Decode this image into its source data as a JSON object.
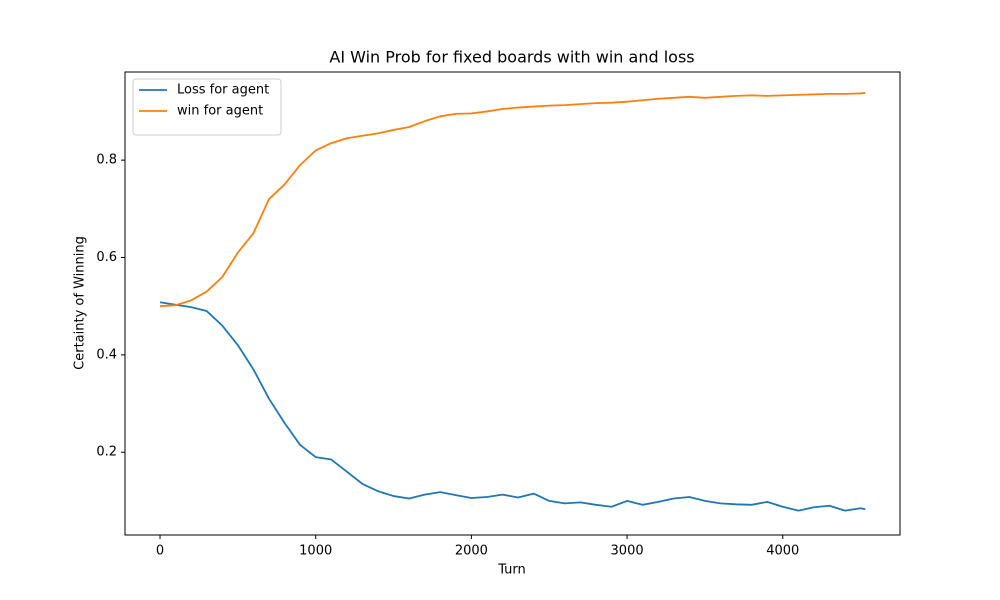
{
  "chart_data": {
    "type": "line",
    "title": "AI Win Prob for fixed boards with win and loss",
    "x_label": "Turn",
    "y_label": "Certainty of Winning",
    "x": [
      0,
      100,
      200,
      300,
      400,
      500,
      600,
      700,
      800,
      900,
      1000,
      1100,
      1200,
      1300,
      1400,
      1500,
      1600,
      1700,
      1800,
      1900,
      2000,
      2100,
      2200,
      2300,
      2400,
      2500,
      2600,
      2700,
      2800,
      2900,
      3000,
      3100,
      3200,
      3300,
      3400,
      3500,
      3600,
      3700,
      3800,
      3900,
      4000,
      4100,
      4200,
      4300,
      4400,
      4500,
      4530
    ],
    "series": [
      {
        "name": "Loss for agent",
        "color": "#1f77b4",
        "values": [
          0.508,
          0.503,
          0.498,
          0.49,
          0.46,
          0.42,
          0.37,
          0.31,
          0.26,
          0.215,
          0.19,
          0.185,
          0.16,
          0.135,
          0.12,
          0.11,
          0.105,
          0.113,
          0.118,
          0.112,
          0.106,
          0.108,
          0.113,
          0.107,
          0.115,
          0.1,
          0.095,
          0.097,
          0.092,
          0.088,
          0.1,
          0.092,
          0.098,
          0.105,
          0.108,
          0.1,
          0.095,
          0.093,
          0.092,
          0.098,
          0.088,
          0.08,
          0.087,
          0.09,
          0.08,
          0.085,
          0.083
        ]
      },
      {
        "name": "win for agent",
        "color": "#ff7f0e",
        "values": [
          0.5,
          0.502,
          0.512,
          0.53,
          0.56,
          0.61,
          0.65,
          0.72,
          0.75,
          0.79,
          0.82,
          0.835,
          0.845,
          0.85,
          0.855,
          0.862,
          0.868,
          0.88,
          0.89,
          0.895,
          0.896,
          0.9,
          0.905,
          0.908,
          0.91,
          0.912,
          0.913,
          0.915,
          0.917,
          0.918,
          0.92,
          0.923,
          0.926,
          0.928,
          0.93,
          0.928,
          0.93,
          0.932,
          0.933,
          0.932,
          0.933,
          0.934,
          0.935,
          0.936,
          0.936,
          0.937,
          0.938
        ]
      }
    ],
    "xlim": [
      -225,
      4753
    ],
    "ylim": [
      0.03,
      0.981
    ],
    "xticks": [
      0,
      1000,
      2000,
      3000,
      4000
    ],
    "yticks": [
      0.2,
      0.4,
      0.6,
      0.8
    ],
    "legend": "upper left",
    "grid": false
  }
}
